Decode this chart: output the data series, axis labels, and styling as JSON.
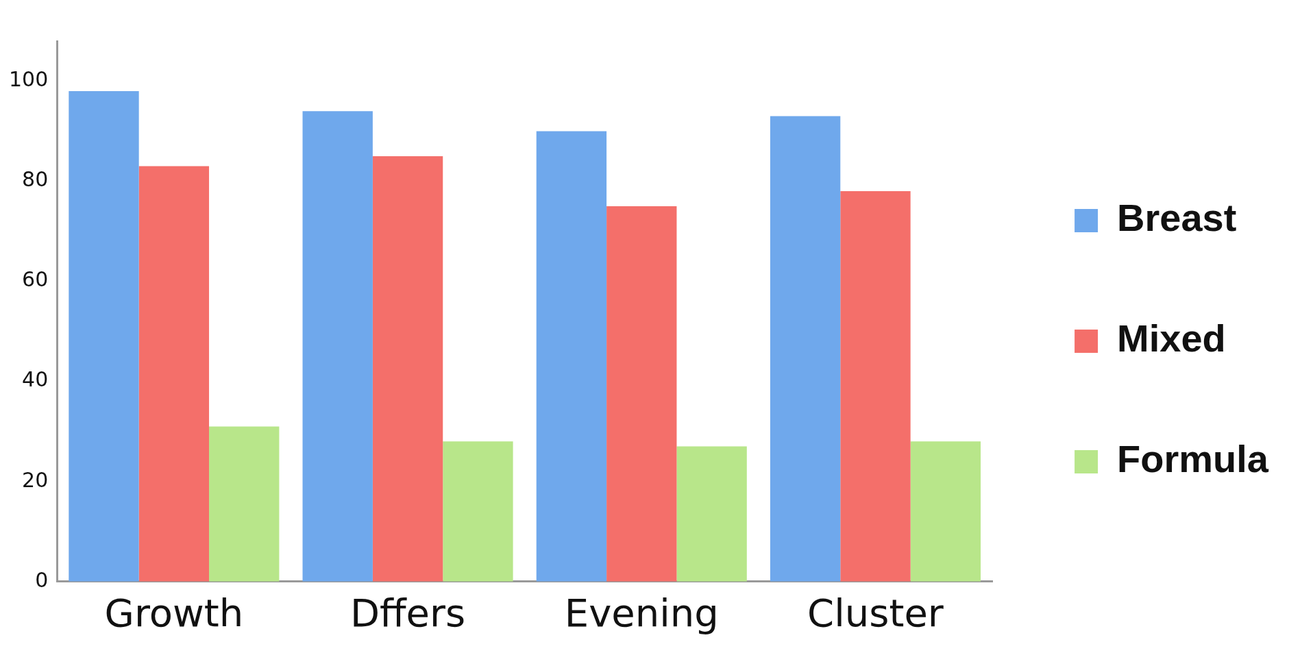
{
  "chart_data": {
    "type": "bar",
    "categories": [
      "Growth",
      "Dffers",
      "Evening",
      "Cluster"
    ],
    "series": [
      {
        "name": "Breast",
        "color": "#6fa8ec",
        "values": [
          98,
          94,
          90,
          93
        ]
      },
      {
        "name": "Mixed",
        "color": "#f46f6a",
        "values": [
          83,
          85,
          75,
          78
        ]
      },
      {
        "name": "Formula",
        "color": "#b8e68a",
        "values": [
          31,
          28,
          27,
          28
        ]
      }
    ],
    "ylim": [
      0,
      108
    ],
    "yticks": [
      0,
      20,
      40,
      60,
      80,
      100
    ],
    "legend": "right"
  }
}
